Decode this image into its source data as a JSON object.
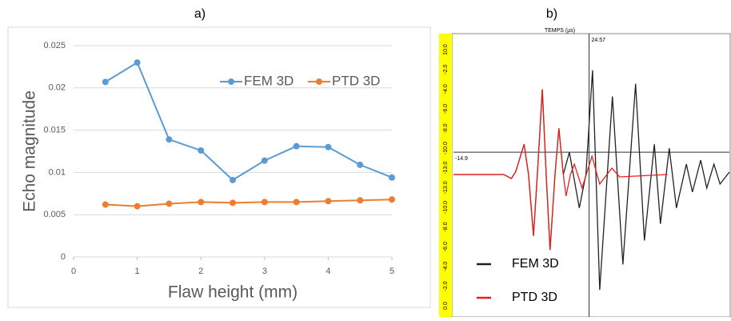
{
  "chart_data": [
    {
      "type": "line",
      "title": "a)",
      "x_label": "Flaw height (mm)",
      "y_label": "Echo magnitude",
      "x": [
        0.5,
        1,
        1.5,
        2,
        2.5,
        3,
        3.5,
        4,
        4.5,
        5
      ],
      "series": [
        {
          "name": "FEM 3D",
          "color": "#5b9bd5",
          "values": [
            0.0207,
            0.023,
            0.0139,
            0.0126,
            0.0091,
            0.0114,
            0.0131,
            0.013,
            0.0109,
            0.0094
          ]
        },
        {
          "name": "PTD 3D",
          "color": "#ed7d31",
          "values": [
            0.0062,
            0.006,
            0.0063,
            0.0065,
            0.0064,
            0.0065,
            0.0065,
            0.0066,
            0.0067,
            0.0068
          ]
        }
      ],
      "xlim": [
        0,
        5
      ],
      "xticks": [
        0,
        1,
        2,
        3,
        4,
        5
      ],
      "ylim": [
        0,
        0.025
      ],
      "yticks": [
        0,
        0.005,
        0.01,
        0.015,
        0.02,
        0.025
      ],
      "grid": true,
      "markers": true,
      "legend": "top-right"
    },
    {
      "type": "line",
      "title": "b)",
      "x_label": "TEMPS (µs)",
      "axis_labels": [
        "10.0",
        "-2.0",
        "-4.0",
        "-6.0",
        "-8.0",
        "-10.0",
        "-13.0",
        "-13.0",
        "-10.0",
        "-8.0",
        "-6.0",
        "-4.0",
        "-2.0",
        "0.0"
      ],
      "vline": 24.57,
      "hline": -14.9,
      "series": [
        {
          "name": "FEM 3D",
          "color": "#222222",
          "x": [
            0,
            9.1,
            10.5,
            11.3,
            12.8,
            13.6,
            14.5,
            15.2,
            16.1,
            16.8,
            17.5,
            18.4,
            19.1,
            19.9,
            21.0,
            22.8,
            24.0,
            25.2,
            26.5,
            28.8,
            30.7,
            33.0,
            34.6,
            36.4,
            37.5,
            39.1,
            40.4,
            42.2,
            43.3,
            44.8,
            45.9,
            47.2,
            48.3,
            50
          ],
          "values": [
            -17.7,
            -17.7,
            -18.2,
            -17.3,
            -13.9,
            -17.7,
            -25.4,
            -17.7,
            -7.0,
            -17.7,
            -27.2,
            -17.7,
            -11.9,
            -17.7,
            -14.9,
            -21.9,
            -17.7,
            -4.6,
            -32.2,
            -7.9,
            -29.0,
            -6.3,
            -26.0,
            -13.9,
            -23.9,
            -14.4,
            -21.9,
            -16.4,
            -19.9,
            -15.9,
            -19.4,
            -16.4,
            -18.9,
            -17.4
          ]
        },
        {
          "name": "PTD 3D",
          "color": "#e8201c",
          "x": [
            0,
            9.1,
            10.5,
            11.3,
            12.8,
            13.6,
            14.5,
            15.2,
            16.1,
            16.8,
            17.5,
            18.4,
            19.1,
            19.9,
            20.4,
            21.2,
            21.9,
            23.3,
            25.1,
            26.5,
            28.7,
            30.1,
            38.8
          ],
          "values": [
            -17.7,
            -17.7,
            -18.2,
            -17.3,
            -13.9,
            -17.7,
            -25.4,
            -17.7,
            -7.0,
            -17.7,
            -27.2,
            -17.7,
            -11.9,
            -17.7,
            -20.4,
            -17.7,
            -16.4,
            -19.4,
            -15.4,
            -18.9,
            -16.9,
            -18.0,
            -17.7
          ]
        }
      ],
      "xlim": [
        0,
        50
      ],
      "ylim": [
        -35,
        0
      ],
      "legend": "bottom-left"
    }
  ]
}
